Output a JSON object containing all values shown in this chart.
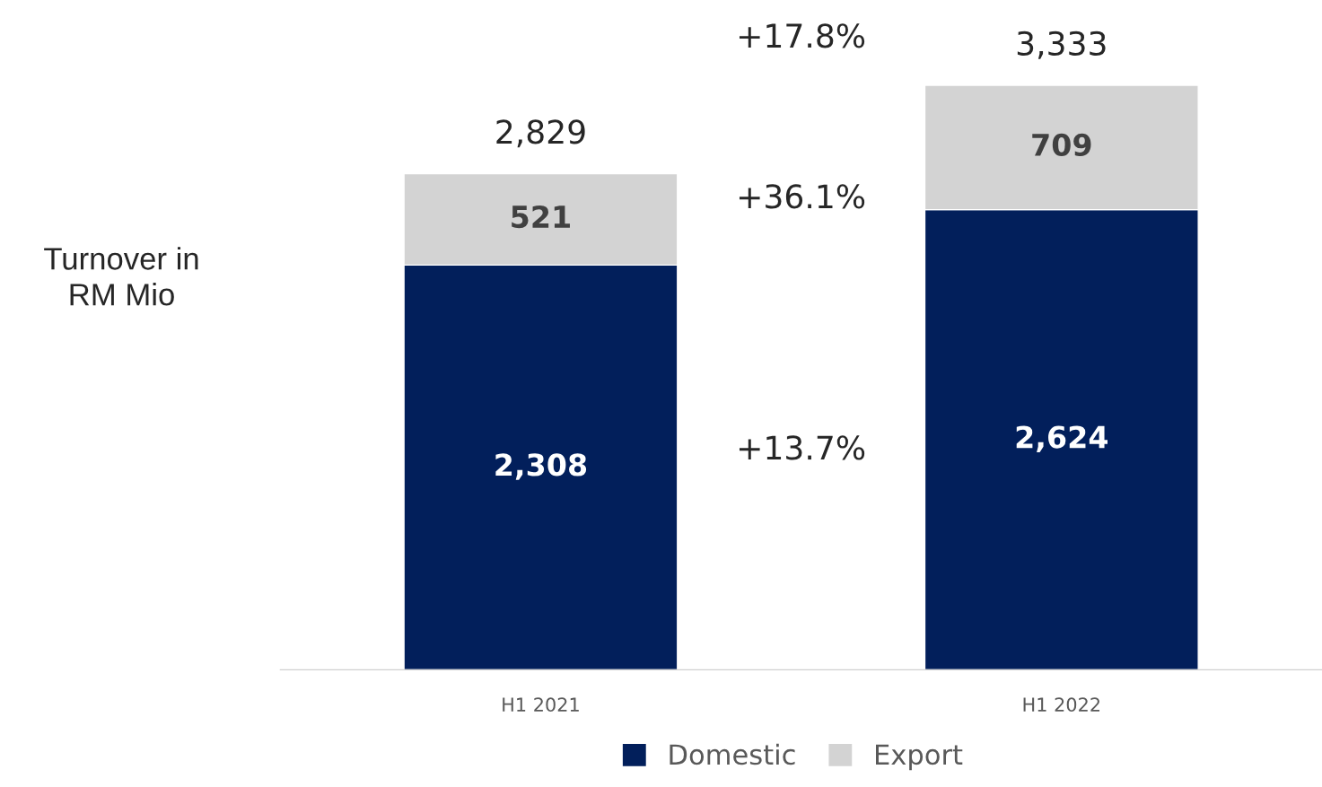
{
  "chart_data": {
    "type": "bar",
    "stacked": true,
    "ylabel": "Turnover in RM Mio",
    "categories": [
      "H1 2021",
      "H1 2022"
    ],
    "series": [
      {
        "name": "Domestic",
        "color": "#021f5b",
        "values": [
          2308,
          2624
        ],
        "value_labels": [
          "2,308",
          "2,624"
        ]
      },
      {
        "name": "Export",
        "color": "#d3d3d3",
        "values": [
          521,
          709
        ],
        "value_labels": [
          "521",
          "709"
        ]
      }
    ],
    "totals": [
      "2,829",
      "3,333"
    ],
    "annotations": [
      "+17.8%",
      "+36.1%",
      "+13.7%"
    ],
    "legend": "bottom",
    "grid": false
  }
}
